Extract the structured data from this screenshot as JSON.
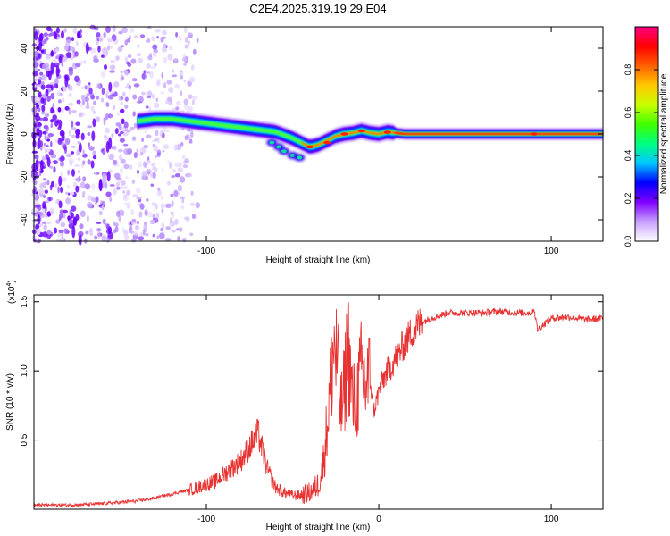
{
  "title": "C2E4.2025.319.19.29.E04",
  "chart_data": [
    {
      "type": "heatmap",
      "title": "C2E4.2025.319.19.29.E04",
      "xlabel": "Height of straight line (km)",
      "ylabel": "Frequency (Hz)",
      "xlim": [
        -200,
        130
      ],
      "ylim": [
        -50,
        50
      ],
      "xticks": [
        -100,
        100
      ],
      "xticklabels": [
        "-100",
        "100"
      ],
      "yticks": [
        40,
        20,
        0,
        -20,
        -40
      ],
      "yticklabels": [
        "40",
        "20",
        "0",
        "-20",
        "-40"
      ],
      "colorbar": {
        "label": "Normalized spectral amplitude",
        "range": [
          0,
          1
        ],
        "ticks": [
          0.0,
          0.2,
          0.4,
          0.6,
          0.8
        ],
        "ticklabels": [
          "0.0",
          "0.2",
          "0.4",
          "0.6",
          "0.8"
        ],
        "colormap": [
          "#ffffff",
          "#c8a0ff",
          "#8000ff",
          "#0000ff",
          "#00c8ff",
          "#00ff80",
          "#40ff00",
          "#c8ff00",
          "#ffc800",
          "#ff6000",
          "#ff0000",
          "#ff0080"
        ]
      },
      "ridge": {
        "x": [
          -140,
          -130,
          -120,
          -110,
          -100,
          -90,
          -80,
          -70,
          -60,
          -50,
          -45,
          -40,
          -35,
          -30,
          -25,
          -20,
          -15,
          -10,
          -5,
          0,
          5,
          10,
          15,
          20,
          40,
          60,
          80,
          100,
          130
        ],
        "y": [
          6,
          7,
          7,
          6,
          5,
          4,
          3,
          2,
          1,
          -2,
          -4,
          -6,
          -5,
          -3,
          -1,
          0,
          0.5,
          1.5,
          0.5,
          0,
          1,
          0.5,
          0,
          0,
          0,
          0,
          0,
          0,
          0
        ]
      }
    },
    {
      "type": "line",
      "xlabel": "Height of straight line (km)",
      "ylabel": "SNR (10 * v/v)",
      "yscale_label": "(x10",
      "yscale_exp": "4",
      "xlim": [
        -200,
        130
      ],
      "ylim": [
        0,
        1.55
      ],
      "xticks": [
        -100,
        0,
        100
      ],
      "xticklabels": [
        "-100",
        "0",
        "100"
      ],
      "yticks": [
        0.5,
        1.0,
        1.5
      ],
      "yticklabels": [
        "0.5",
        "1.0",
        "1.5"
      ],
      "series": [
        {
          "name": "SNR",
          "color": "#e83232",
          "x": [
            -200,
            -180,
            -160,
            -140,
            -130,
            -120,
            -110,
            -100,
            -95,
            -90,
            -85,
            -80,
            -75,
            -70,
            -65,
            -60,
            -55,
            -50,
            -45,
            -40,
            -35,
            -32,
            -30,
            -28,
            -26,
            -24,
            -22,
            -20,
            -18,
            -15,
            -12,
            -10,
            -8,
            -5,
            -3,
            0,
            3,
            5,
            8,
            10,
            15,
            20,
            25,
            30,
            35,
            40,
            50,
            60,
            70,
            80,
            88,
            90,
            92,
            100,
            110,
            120,
            130
          ],
          "y": [
            0.03,
            0.03,
            0.04,
            0.06,
            0.08,
            0.11,
            0.14,
            0.18,
            0.2,
            0.25,
            0.3,
            0.35,
            0.45,
            0.55,
            0.3,
            0.16,
            0.12,
            0.1,
            0.1,
            0.12,
            0.18,
            0.35,
            0.6,
            0.9,
            1.2,
            1.05,
            0.7,
            0.85,
            1.2,
            0.75,
            0.85,
            1.0,
            0.9,
            0.95,
            0.7,
            0.85,
            0.95,
            1.0,
            1.05,
            1.1,
            1.2,
            1.3,
            1.35,
            1.38,
            1.4,
            1.42,
            1.42,
            1.42,
            1.43,
            1.42,
            1.42,
            1.45,
            1.3,
            1.38,
            1.39,
            1.37,
            1.38
          ]
        }
      ]
    }
  ]
}
